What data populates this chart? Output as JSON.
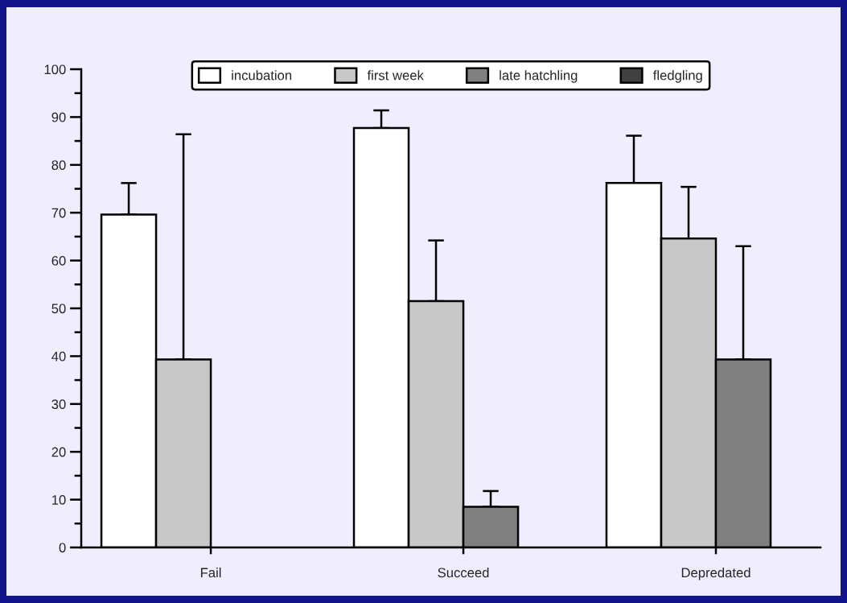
{
  "chart_data": {
    "type": "bar",
    "categories": [
      "Fail",
      "Succeed",
      "Depredated"
    ],
    "series": [
      {
        "name": "incubation",
        "color": "#ffffff",
        "values": [
          69.6,
          87.7,
          76.2
        ],
        "errors": [
          [
            69.6,
            76.2
          ],
          [
            87.7,
            91.4
          ],
          [
            76.2,
            86.1
          ]
        ]
      },
      {
        "name": "first week",
        "color": "#c8c8c8",
        "values": [
          39.3,
          51.5,
          64.6
        ],
        "errors": [
          [
            39.3,
            86.4
          ],
          [
            51.5,
            64.2
          ],
          [
            64.6,
            75.4
          ]
        ]
      },
      {
        "name": "late hatchling",
        "color": "#808080",
        "values": [
          null,
          8.5,
          39.3
        ],
        "errors": [
          null,
          [
            8.5,
            11.8
          ],
          [
            39.3,
            63.0
          ]
        ]
      },
      {
        "name": "fledgling",
        "color": "#404040",
        "values": [
          null,
          null,
          null
        ]
      }
    ],
    "ylim": [
      0,
      100
    ],
    "yticks": [
      0,
      10,
      20,
      30,
      40,
      50,
      60,
      70,
      80,
      90,
      100
    ],
    "grid": false,
    "legend": "top"
  }
}
